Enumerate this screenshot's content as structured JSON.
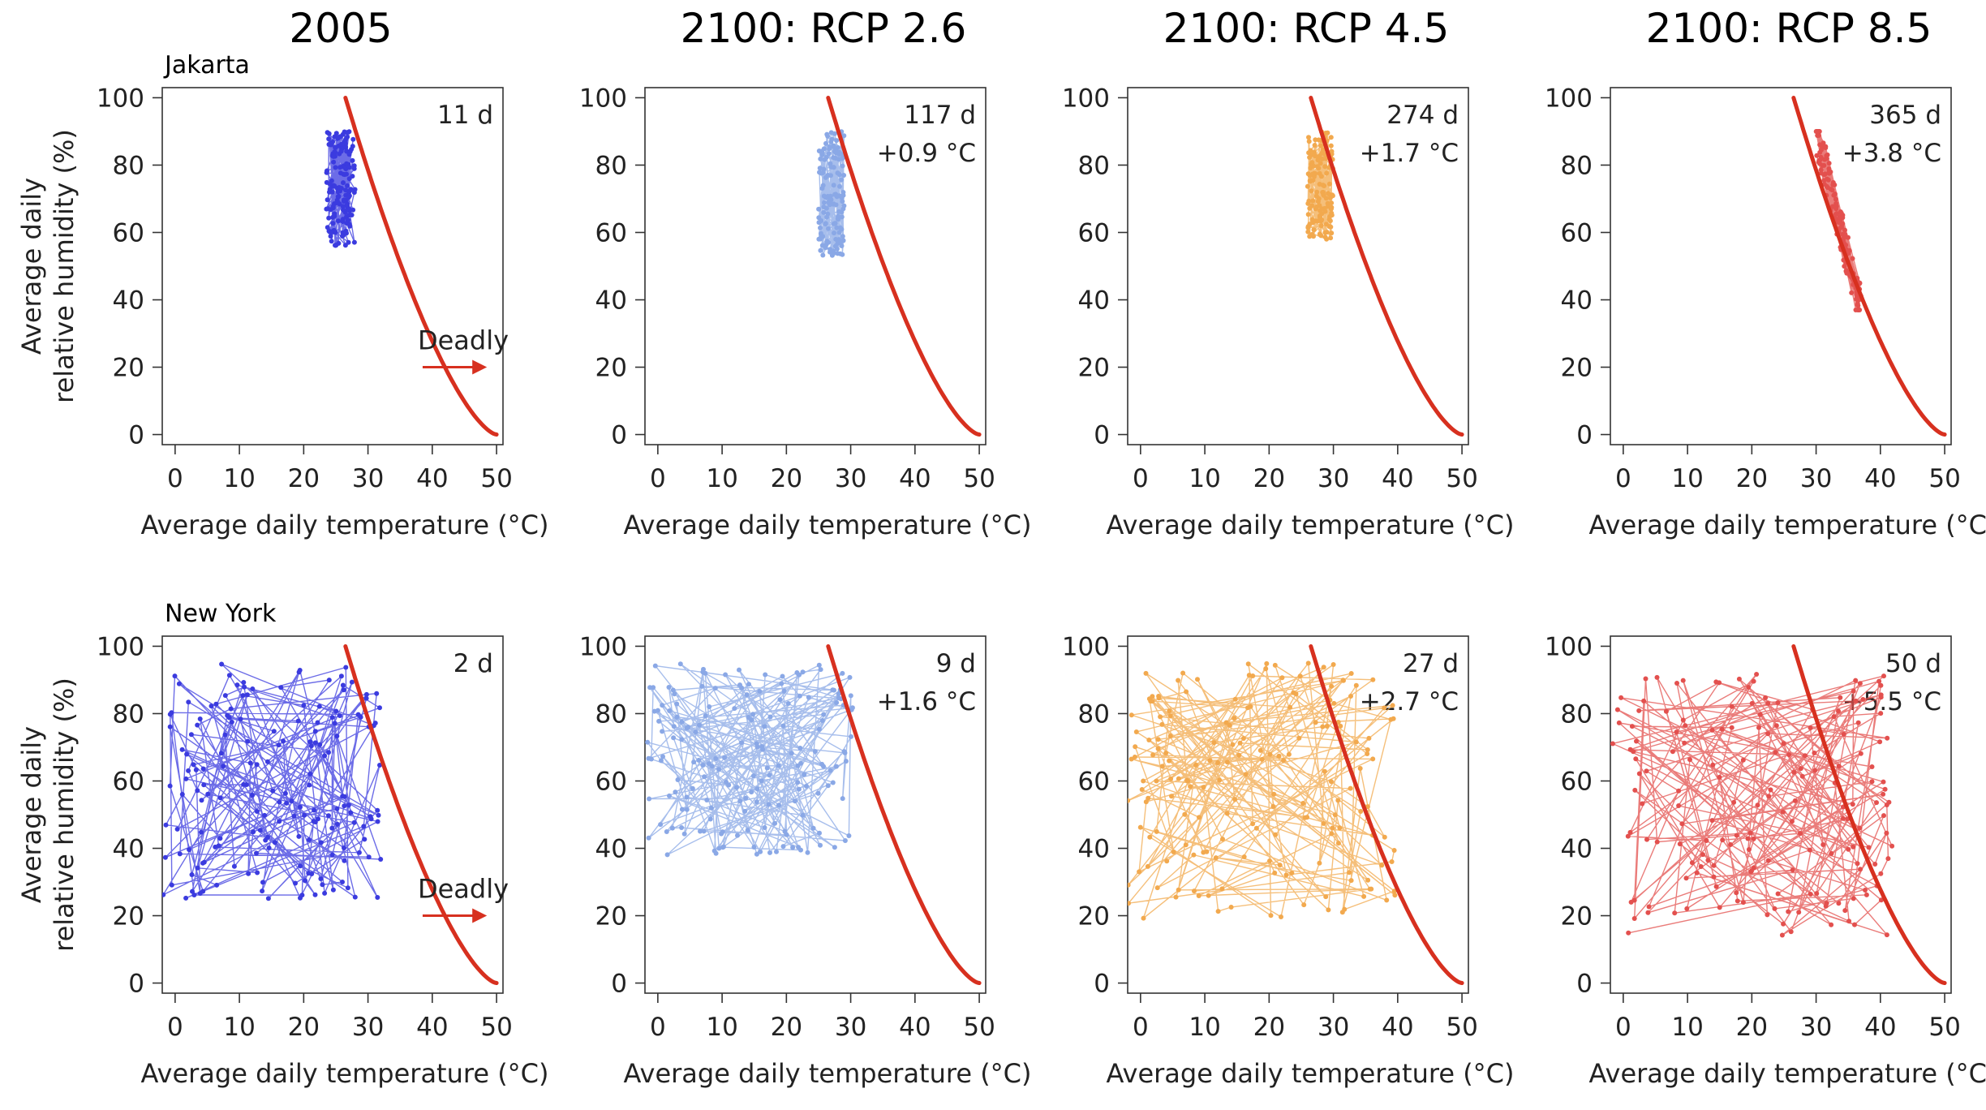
{
  "columns": [
    "2005",
    "2100: RCP 2.6",
    "2100: RCP 4.5",
    "2100: RCP 8.5"
  ],
  "rows": [
    "Jakarta",
    "New York"
  ],
  "deadly_label": "Deadly",
  "colors": {
    "threshold": "#d7301f",
    "series": [
      "#3b3bdf",
      "#8aa8e6",
      "#f2a94e",
      "#e3504e"
    ]
  },
  "chart_data": [
    {
      "type": "scatter",
      "row": "Jakarta",
      "column": "2005",
      "days": "11 d",
      "warming": "",
      "xlabel": "Average daily temperature (°C)",
      "ylabel": [
        "Average daily",
        "relative humidity (%)"
      ],
      "xlim": [
        -2,
        51
      ],
      "ylim": [
        -3,
        103
      ],
      "xticks": [
        0,
        10,
        20,
        30,
        40,
        50
      ],
      "yticks": [
        0,
        20,
        40,
        60,
        80,
        100
      ],
      "cluster": {
        "x": [
          23.5,
          28
        ],
        "y": [
          56,
          90
        ],
        "n": 160
      },
      "show_deadly": true
    },
    {
      "type": "scatter",
      "row": "Jakarta",
      "column": "2100: RCP 2.6",
      "days": "117 d",
      "warming": "+0.9 °C",
      "xlabel": "Average daily temperature (°C)",
      "xlim": [
        -2,
        51
      ],
      "ylim": [
        -3,
        103
      ],
      "xticks": [
        0,
        10,
        20,
        30,
        40,
        50
      ],
      "yticks": [
        0,
        20,
        40,
        60,
        80,
        100
      ],
      "cluster": {
        "x": [
          25,
          29
        ],
        "y": [
          53,
          90
        ],
        "n": 140
      },
      "show_deadly": false
    },
    {
      "type": "scatter",
      "row": "Jakarta",
      "column": "2100: RCP 4.5",
      "days": "274 d",
      "warming": "+1.7 °C",
      "xlabel": "Average daily temperature (°C)",
      "xlim": [
        -2,
        51
      ],
      "ylim": [
        -3,
        103
      ],
      "xticks": [
        0,
        10,
        20,
        30,
        40,
        50
      ],
      "yticks": [
        0,
        20,
        40,
        60,
        80,
        100
      ],
      "cluster": {
        "x": [
          26,
          30
        ],
        "y": [
          58,
          91
        ],
        "n": 140
      },
      "show_deadly": false
    },
    {
      "type": "scatter",
      "row": "Jakarta",
      "column": "2100: RCP 8.5",
      "days": "365 d",
      "warming": "+3.8 °C",
      "xlabel": "Average daily temperature (°C)",
      "xlim": [
        -2,
        51
      ],
      "ylim": [
        -3,
        103
      ],
      "xticks": [
        0,
        10,
        20,
        30,
        40,
        50
      ],
      "yticks": [
        0,
        20,
        40,
        60,
        80,
        100
      ],
      "cluster": {
        "x": [
          30,
          37
        ],
        "y": [
          37,
          90
        ],
        "n": 150,
        "diagonal": true
      },
      "show_deadly": false
    },
    {
      "type": "scatter",
      "row": "New York",
      "column": "2005",
      "days": "2 d",
      "warming": "",
      "xlabel": "Average daily temperature (°C)",
      "ylabel": [
        "Average daily",
        "relative humidity (%)"
      ],
      "xlim": [
        -2,
        51
      ],
      "ylim": [
        -3,
        103
      ],
      "xticks": [
        0,
        10,
        20,
        30,
        40,
        50
      ],
      "yticks": [
        0,
        20,
        40,
        60,
        80,
        100
      ],
      "cluster": {
        "x": [
          -2,
          32
        ],
        "y": [
          25,
          95
        ],
        "n": 180
      },
      "show_deadly": true
    },
    {
      "type": "scatter",
      "row": "New York",
      "column": "2100: RCP 2.6",
      "days": "9 d",
      "warming": "+1.6 °C",
      "xlabel": "Average daily temperature (°C)",
      "xlim": [
        -2,
        51
      ],
      "ylim": [
        -3,
        103
      ],
      "xticks": [
        0,
        10,
        20,
        30,
        40,
        50
      ],
      "yticks": [
        0,
        20,
        40,
        60,
        80,
        100
      ],
      "cluster": {
        "x": [
          -2,
          31
        ],
        "y": [
          38,
          95
        ],
        "n": 180
      },
      "show_deadly": false
    },
    {
      "type": "scatter",
      "row": "New York",
      "column": "2100: RCP 4.5",
      "days": "27 d",
      "warming": "+2.7 °C",
      "xlabel": "Average daily temperature (°C)",
      "xlim": [
        -2,
        51
      ],
      "ylim": [
        -3,
        103
      ],
      "xticks": [
        0,
        10,
        20,
        30,
        40,
        50
      ],
      "yticks": [
        0,
        20,
        40,
        60,
        80,
        100
      ],
      "cluster": {
        "x": [
          -2,
          40
        ],
        "y": [
          19,
          95
        ],
        "n": 180
      },
      "show_deadly": false
    },
    {
      "type": "scatter",
      "row": "New York",
      "column": "2100: RCP 8.5",
      "days": "50 d",
      "warming": "+5.5 °C",
      "xlabel": "Average daily temperature (°C)",
      "xlim": [
        -2,
        51
      ],
      "ylim": [
        -3,
        103
      ],
      "xticks": [
        0,
        10,
        20,
        30,
        40,
        50
      ],
      "yticks": [
        0,
        20,
        40,
        60,
        80,
        100
      ],
      "cluster": {
        "x": [
          -2,
          42
        ],
        "y": [
          14,
          92
        ],
        "n": 180
      },
      "show_deadly": false
    }
  ]
}
